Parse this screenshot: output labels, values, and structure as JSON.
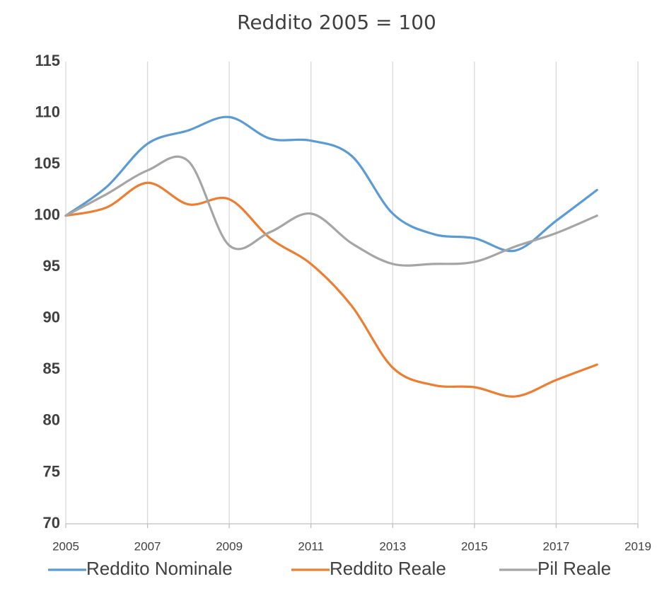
{
  "chart_data": {
    "type": "line",
    "title": "Reddito 2005 = 100",
    "x": [
      2005,
      2006,
      2007,
      2008,
      2009,
      2010,
      2011,
      2012,
      2013,
      2014,
      2015,
      2016,
      2017,
      2018
    ],
    "series": [
      {
        "name": "Reddito Nominale",
        "color": "#5b9bd5",
        "values": [
          100,
          102.8,
          107,
          108.3,
          109.6,
          107.5,
          107.3,
          105.8,
          100.2,
          98.2,
          97.8,
          96.6,
          99.5,
          102.5
        ]
      },
      {
        "name": "Reddito Reale",
        "color": "#ed7d31",
        "values": [
          100,
          100.8,
          103.2,
          101.1,
          101.6,
          97.8,
          95.3,
          91.2,
          85.2,
          83.5,
          83.3,
          82.4,
          84.0,
          85.5
        ]
      },
      {
        "name": "Pil Reale",
        "color": "#a5a5a5",
        "values": [
          100,
          102.1,
          104.4,
          105.3,
          97.1,
          98.4,
          100.2,
          97.3,
          95.3,
          95.3,
          95.5,
          97.0,
          98.3,
          100.0
        ]
      }
    ],
    "xlim": [
      2005,
      2019
    ],
    "xticks": [
      2005,
      2007,
      2009,
      2011,
      2013,
      2015,
      2017,
      2019
    ],
    "ylim": [
      70,
      115
    ],
    "yticks": [
      70,
      75,
      80,
      85,
      90,
      95,
      100,
      105,
      110,
      115
    ],
    "grid": "x",
    "legend": "bottom"
  }
}
